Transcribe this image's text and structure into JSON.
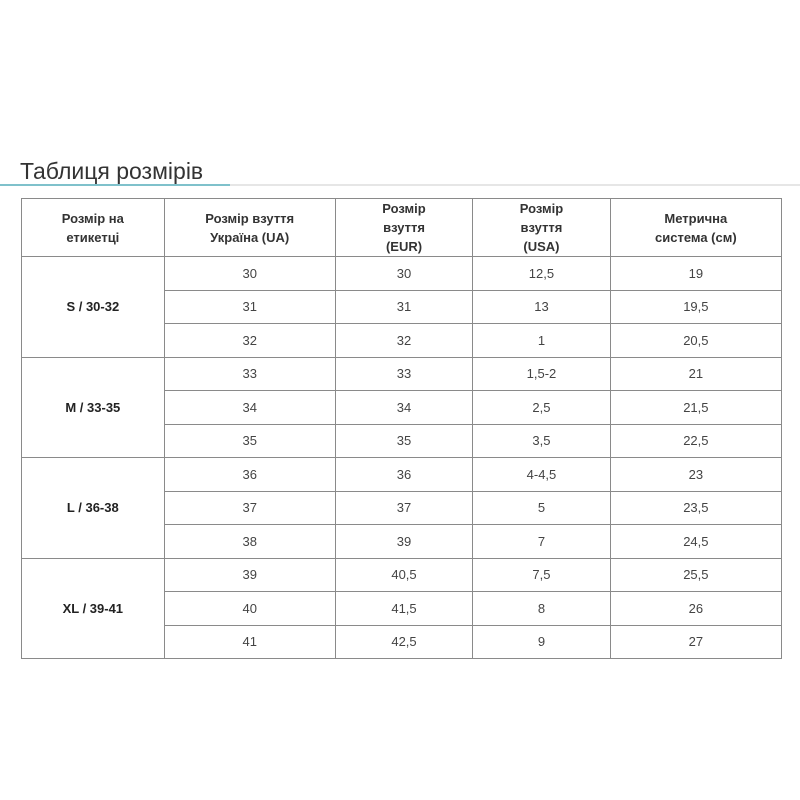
{
  "title": "Таблиця розмірів",
  "colors": {
    "accent": "#7fc1cb",
    "border": "#8a8a8a"
  },
  "headers": [
    "Розмір на етикетці",
    "Розмір взуття Україна (UA)",
    "Розмір взуття (EUR)",
    "Розмір взуття (USA)",
    "Метрична система (см)"
  ],
  "groups": [
    {
      "label": "S / 30-32",
      "rows": [
        [
          "30",
          "30",
          "12,5",
          "19"
        ],
        [
          "31",
          "31",
          "13",
          "19,5"
        ],
        [
          "32",
          "32",
          "1",
          "20,5"
        ]
      ]
    },
    {
      "label": "M / 33-35",
      "rows": [
        [
          "33",
          "33",
          "1,5-2",
          "21"
        ],
        [
          "34",
          "34",
          "2,5",
          "21,5"
        ],
        [
          "35",
          "35",
          "3,5",
          "22,5"
        ]
      ]
    },
    {
      "label": "L / 36-38",
      "rows": [
        [
          "36",
          "36",
          "4-4,5",
          "23"
        ],
        [
          "37",
          "37",
          "5",
          "23,5"
        ],
        [
          "38",
          "39",
          "7",
          "24,5"
        ]
      ]
    },
    {
      "label": "XL / 39-41",
      "rows": [
        [
          "39",
          "40,5",
          "7,5",
          "25,5"
        ],
        [
          "40",
          "41,5",
          "8",
          "26"
        ],
        [
          "41",
          "42,5",
          "9",
          "27"
        ]
      ]
    }
  ]
}
